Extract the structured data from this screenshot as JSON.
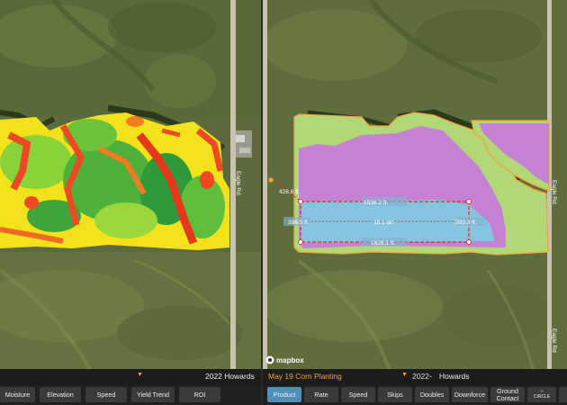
{
  "left": {
    "selected_field_suffix": "2022 Howards",
    "buttons": [
      {
        "label": "Moisture"
      },
      {
        "label": "Elevation"
      },
      {
        "label": "Speed"
      },
      {
        "label": "Yield Trend"
      },
      {
        "label": "ROI"
      }
    ],
    "road_label": "Eagle Rd"
  },
  "right": {
    "operation": "May 19 Corn Planting",
    "year": "2022",
    "farm": "Howards",
    "buttons": [
      {
        "label": "Product",
        "active": true
      },
      {
        "label": "Rate",
        "active": false
      },
      {
        "label": "Speed",
        "active": false
      },
      {
        "label": "Skips",
        "active": false
      },
      {
        "label": "Doubles",
        "active": false
      },
      {
        "label": "Downforce",
        "active": false
      },
      {
        "label": "Ground Contact",
        "line1": "Ground",
        "line2": "Contact",
        "active": false
      },
      {
        "label": "CIRCLE",
        "active": false
      }
    ],
    "mapbox_logo": "mapbox",
    "road_label": "Eagle Rd",
    "measurements": {
      "top": "1536.2 ft.",
      "left": "396.5 ft.",
      "area": "15.1 ac.",
      "right": "393.3 ft.",
      "bottom": "1628.1 ft.",
      "diagonal": "428.6 ft."
    }
  },
  "colors": {
    "accent_orange": "#f0a63a",
    "active_tab": "#4f90b8",
    "button_bg": "#3a3a3a",
    "panel_bg": "#1c1c1c"
  }
}
